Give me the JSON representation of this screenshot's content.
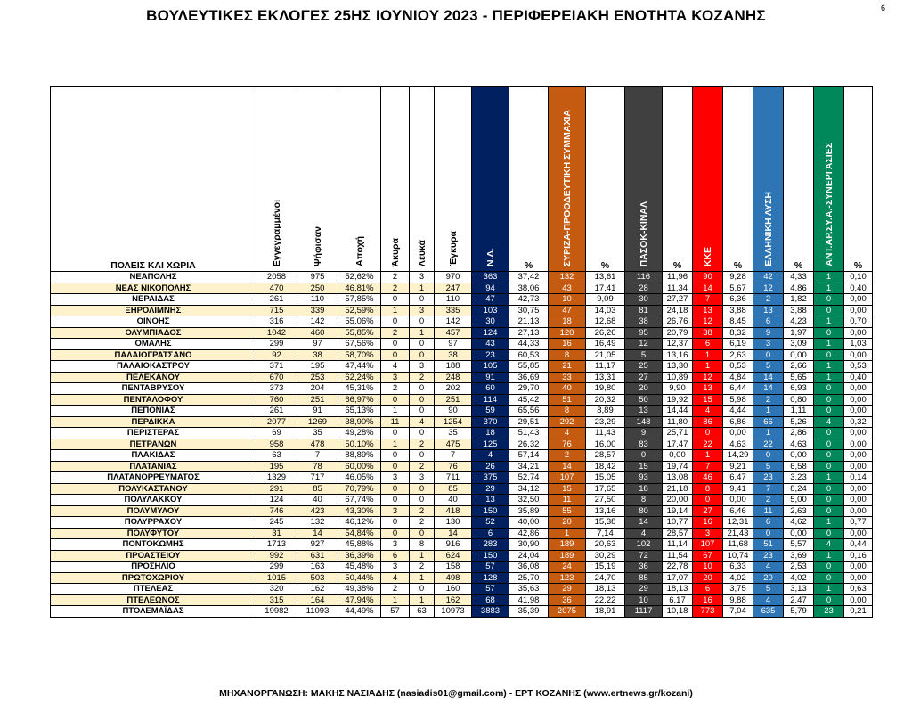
{
  "title": "ΒΟΥΛΕΥΤΙΚΕΣ ΕΚΛΟΓΕΣ 25ΗΣ ΙΟΥΝΙΟΥ 2023 - ΠΕΡΙΦΕΡΕΙΑΚΗ ΕΝΟΤΗΤΑ ΚΟΖΑΝΗΣ",
  "page_number": "6",
  "footer": "ΜΗΧΑΝΟΡΓΑΝΩΣΗ: ΜΑΚΗΣ ΝΑΣΙΑΔΗΣ (nasiadis01@gmail.com) - ΕΡΤ ΚΟΖΑΝΗΣ (www.ertnews.gr/kozani)",
  "colors": {
    "nd": "#002060",
    "syriza": "#c55a11",
    "pasok": "#404040",
    "kke": "#ff0000",
    "elliniki": "#2e75b6",
    "antarsya": "#00875a",
    "alt_row": "#fdf2cc",
    "header_gray": "#bfbfbf"
  },
  "headers": {
    "name": "ΠΟΛΕΙΣ ΚΑΙ ΧΩΡΙΑ",
    "registered": "Εγγεγραμμένοι",
    "voted": "Ψήφισαν",
    "turnout": "Αποχή",
    "invalid": "Άκυρα",
    "blank": "Λευκά",
    "valid": "Έγκυρα",
    "pct": "%",
    "nd": "Ν.Δ.",
    "syriza": "ΣΥΡΙΖΑ-ΠΡΟΟΔΕΥΤΙΚΗ ΣΥΜΜΑΧΙΑ",
    "pasok": "ΠΑΣΟΚ-ΚΙΝΑΛ",
    "kke": "ΚΚΕ",
    "elliniki": "ΕΛΛΗΝΙΚΗ ΛΥΣΗ",
    "antarsya": "ΑΝΤ.ΑΡ.ΣΥ.Α.-ΣΥΝΕΡΓΑΣΙΕΣ"
  },
  "rows": [
    [
      "ΝΕΑΠΟΛΗΣ",
      "2058",
      "975",
      "52,62%",
      "2",
      "3",
      "970",
      "363",
      "37,42",
      "132",
      "13,61",
      "116",
      "11,96",
      "90",
      "9,28",
      "42",
      "4,33",
      "1",
      "0,10"
    ],
    [
      "ΝΕΑΣ ΝΙΚΟΠΟΛΗΣ",
      "470",
      "250",
      "46,81%",
      "2",
      "1",
      "247",
      "94",
      "38,06",
      "43",
      "17,41",
      "28",
      "11,34",
      "14",
      "5,67",
      "12",
      "4,86",
      "1",
      "0,40"
    ],
    [
      "ΝΕΡΑΙΔΑΣ",
      "261",
      "110",
      "57,85%",
      "0",
      "0",
      "110",
      "47",
      "42,73",
      "10",
      "9,09",
      "30",
      "27,27",
      "7",
      "6,36",
      "2",
      "1,82",
      "0",
      "0,00"
    ],
    [
      "ΞΗΡΟΛΙΜΝΗΣ",
      "715",
      "339",
      "52,59%",
      "1",
      "3",
      "335",
      "103",
      "30,75",
      "47",
      "14,03",
      "81",
      "24,18",
      "13",
      "3,88",
      "13",
      "3,88",
      "0",
      "0,00"
    ],
    [
      "ΟΙΝΟΗΣ",
      "316",
      "142",
      "55,06%",
      "0",
      "0",
      "142",
      "30",
      "21,13",
      "18",
      "12,68",
      "38",
      "26,76",
      "12",
      "8,45",
      "6",
      "4,23",
      "1",
      "0,70"
    ],
    [
      "ΟΛΥΜΠΙΑΔΟΣ",
      "1042",
      "460",
      "55,85%",
      "2",
      "1",
      "457",
      "124",
      "27,13",
      "120",
      "26,26",
      "95",
      "20,79",
      "38",
      "8,32",
      "9",
      "1,97",
      "0",
      "0,00"
    ],
    [
      "ΟΜΑΛΗΣ",
      "299",
      "97",
      "67,56%",
      "0",
      "0",
      "97",
      "43",
      "44,33",
      "16",
      "16,49",
      "12",
      "12,37",
      "6",
      "6,19",
      "3",
      "3,09",
      "1",
      "1,03"
    ],
    [
      "ΠΑΛΑΙΟΓΡΑΤΣΑΝΟ",
      "92",
      "38",
      "58,70%",
      "0",
      "0",
      "38",
      "23",
      "60,53",
      "8",
      "21,05",
      "5",
      "13,16",
      "1",
      "2,63",
      "0",
      "0,00",
      "0",
      "0,00"
    ],
    [
      "ΠΑΛΑΙΟΚΑΣΤΡΟΥ",
      "371",
      "195",
      "47,44%",
      "4",
      "3",
      "188",
      "105",
      "55,85",
      "21",
      "11,17",
      "25",
      "13,30",
      "1",
      "0,53",
      "5",
      "2,66",
      "1",
      "0,53"
    ],
    [
      "ΠΕΛΕΚΑΝΟΥ",
      "670",
      "253",
      "62,24%",
      "3",
      "2",
      "248",
      "91",
      "36,69",
      "33",
      "13,31",
      "27",
      "10,89",
      "12",
      "4,84",
      "14",
      "5,65",
      "1",
      "0,40"
    ],
    [
      "ΠΕΝΤΑΒΡΥΣΟΥ",
      "373",
      "204",
      "45,31%",
      "2",
      "0",
      "202",
      "60",
      "29,70",
      "40",
      "19,80",
      "20",
      "9,90",
      "13",
      "6,44",
      "14",
      "6,93",
      "0",
      "0,00"
    ],
    [
      "ΠΕΝΤΑΛΟΦΟΥ",
      "760",
      "251",
      "66,97%",
      "0",
      "0",
      "251",
      "114",
      "45,42",
      "51",
      "20,32",
      "50",
      "19,92",
      "15",
      "5,98",
      "2",
      "0,80",
      "0",
      "0,00"
    ],
    [
      "ΠΕΠΟΝΙΑΣ",
      "261",
      "91",
      "65,13%",
      "1",
      "0",
      "90",
      "59",
      "65,56",
      "8",
      "8,89",
      "13",
      "14,44",
      "4",
      "4,44",
      "1",
      "1,11",
      "0",
      "0,00"
    ],
    [
      "ΠΕΡΔΙΚΚΑ",
      "2077",
      "1269",
      "38,90%",
      "11",
      "4",
      "1254",
      "370",
      "29,51",
      "292",
      "23,29",
      "148",
      "11,80",
      "86",
      "6,86",
      "66",
      "5,26",
      "4",
      "0,32"
    ],
    [
      "ΠΕΡΙΣΤΕΡΑΣ",
      "69",
      "35",
      "49,28%",
      "0",
      "0",
      "35",
      "18",
      "51,43",
      "4",
      "11,43",
      "9",
      "25,71",
      "0",
      "0,00",
      "1",
      "2,86",
      "0",
      "0,00"
    ],
    [
      "ΠΕΤΡΑΝΩΝ",
      "958",
      "478",
      "50,10%",
      "1",
      "2",
      "475",
      "125",
      "26,32",
      "76",
      "16,00",
      "83",
      "17,47",
      "22",
      "4,63",
      "22",
      "4,63",
      "0",
      "0,00"
    ],
    [
      "ΠΛΑΚΙΔΑΣ",
      "63",
      "7",
      "88,89%",
      "0",
      "0",
      "7",
      "4",
      "57,14",
      "2",
      "28,57",
      "0",
      "0,00",
      "1",
      "14,29",
      "0",
      "0,00",
      "0",
      "0,00"
    ],
    [
      "ΠΛΑΤΑΝΙΑΣ",
      "195",
      "78",
      "60,00%",
      "0",
      "2",
      "76",
      "26",
      "34,21",
      "14",
      "18,42",
      "15",
      "19,74",
      "7",
      "9,21",
      "5",
      "6,58",
      "0",
      "0,00"
    ],
    [
      "ΠΛΑΤΑΝΟΡΡΕΥΜΑΤΟΣ",
      "1329",
      "717",
      "46,05%",
      "3",
      "3",
      "711",
      "375",
      "52,74",
      "107",
      "15,05",
      "93",
      "13,08",
      "46",
      "6,47",
      "23",
      "3,23",
      "1",
      "0,14"
    ],
    [
      "ΠΟΛΥΚΑΣΤΑΝΟΥ",
      "291",
      "85",
      "70,79%",
      "0",
      "0",
      "85",
      "29",
      "34,12",
      "15",
      "17,65",
      "18",
      "21,18",
      "8",
      "9,41",
      "7",
      "8,24",
      "0",
      "0,00"
    ],
    [
      "ΠΟΛΥΛΑΚΚΟΥ",
      "124",
      "40",
      "67,74%",
      "0",
      "0",
      "40",
      "13",
      "32,50",
      "11",
      "27,50",
      "8",
      "20,00",
      "0",
      "0,00",
      "2",
      "5,00",
      "0",
      "0,00"
    ],
    [
      "ΠΟΛΥΜΥΛΟΥ",
      "746",
      "423",
      "43,30%",
      "3",
      "2",
      "418",
      "150",
      "35,89",
      "55",
      "13,16",
      "80",
      "19,14",
      "27",
      "6,46",
      "11",
      "2,63",
      "0",
      "0,00"
    ],
    [
      "ΠΟΛΥΡΡΑΧΟΥ",
      "245",
      "132",
      "46,12%",
      "0",
      "2",
      "130",
      "52",
      "40,00",
      "20",
      "15,38",
      "14",
      "10,77",
      "16",
      "12,31",
      "6",
      "4,62",
      "1",
      "0,77"
    ],
    [
      "ΠΟΛΥΦΥΤΟΥ",
      "31",
      "14",
      "54,84%",
      "0",
      "0",
      "14",
      "6",
      "42,86",
      "1",
      "7,14",
      "4",
      "28,57",
      "3",
      "21,43",
      "0",
      "0,00",
      "0",
      "0,00"
    ],
    [
      "ΠΟΝΤΟΚΩΜΗΣ",
      "1713",
      "927",
      "45,88%",
      "3",
      "8",
      "916",
      "283",
      "30,90",
      "189",
      "20,63",
      "102",
      "11,14",
      "107",
      "11,68",
      "51",
      "5,57",
      "4",
      "0,44"
    ],
    [
      "ΠΡΟΑΣΤΕΙΟΥ",
      "992",
      "631",
      "36,39%",
      "6",
      "1",
      "624",
      "150",
      "24,04",
      "189",
      "30,29",
      "72",
      "11,54",
      "67",
      "10,74",
      "23",
      "3,69",
      "1",
      "0,16"
    ],
    [
      "ΠΡΟΣΗΛΙΟ",
      "299",
      "163",
      "45,48%",
      "3",
      "2",
      "158",
      "57",
      "36,08",
      "24",
      "15,19",
      "36",
      "22,78",
      "10",
      "6,33",
      "4",
      "2,53",
      "0",
      "0,00"
    ],
    [
      "ΠΡΩΤΟΧΩΡΙΟΥ",
      "1015",
      "503",
      "50,44%",
      "4",
      "1",
      "498",
      "128",
      "25,70",
      "123",
      "24,70",
      "85",
      "17,07",
      "20",
      "4,02",
      "20",
      "4,02",
      "0",
      "0,00"
    ],
    [
      "ΠΤΕΛΕΑΣ",
      "320",
      "162",
      "49,38%",
      "2",
      "0",
      "160",
      "57",
      "35,63",
      "29",
      "18,13",
      "29",
      "18,13",
      "6",
      "3,75",
      "5",
      "3,13",
      "1",
      "0,63"
    ],
    [
      "ΠΤΕΛΕΩΝΟΣ",
      "315",
      "164",
      "47,94%",
      "1",
      "1",
      "162",
      "68",
      "41,98",
      "36",
      "22,22",
      "10",
      "6,17",
      "16",
      "9,88",
      "4",
      "2,47",
      "0",
      "0,00"
    ],
    [
      "ΠΤΟΛΕΜΑΪΔΑΣ",
      "19982",
      "11093",
      "44,49%",
      "57",
      "63",
      "10973",
      "3883",
      "35,39",
      "2075",
      "18,91",
      "1117",
      "10,18",
      "773",
      "7,04",
      "635",
      "5,79",
      "23",
      "0,21"
    ]
  ]
}
